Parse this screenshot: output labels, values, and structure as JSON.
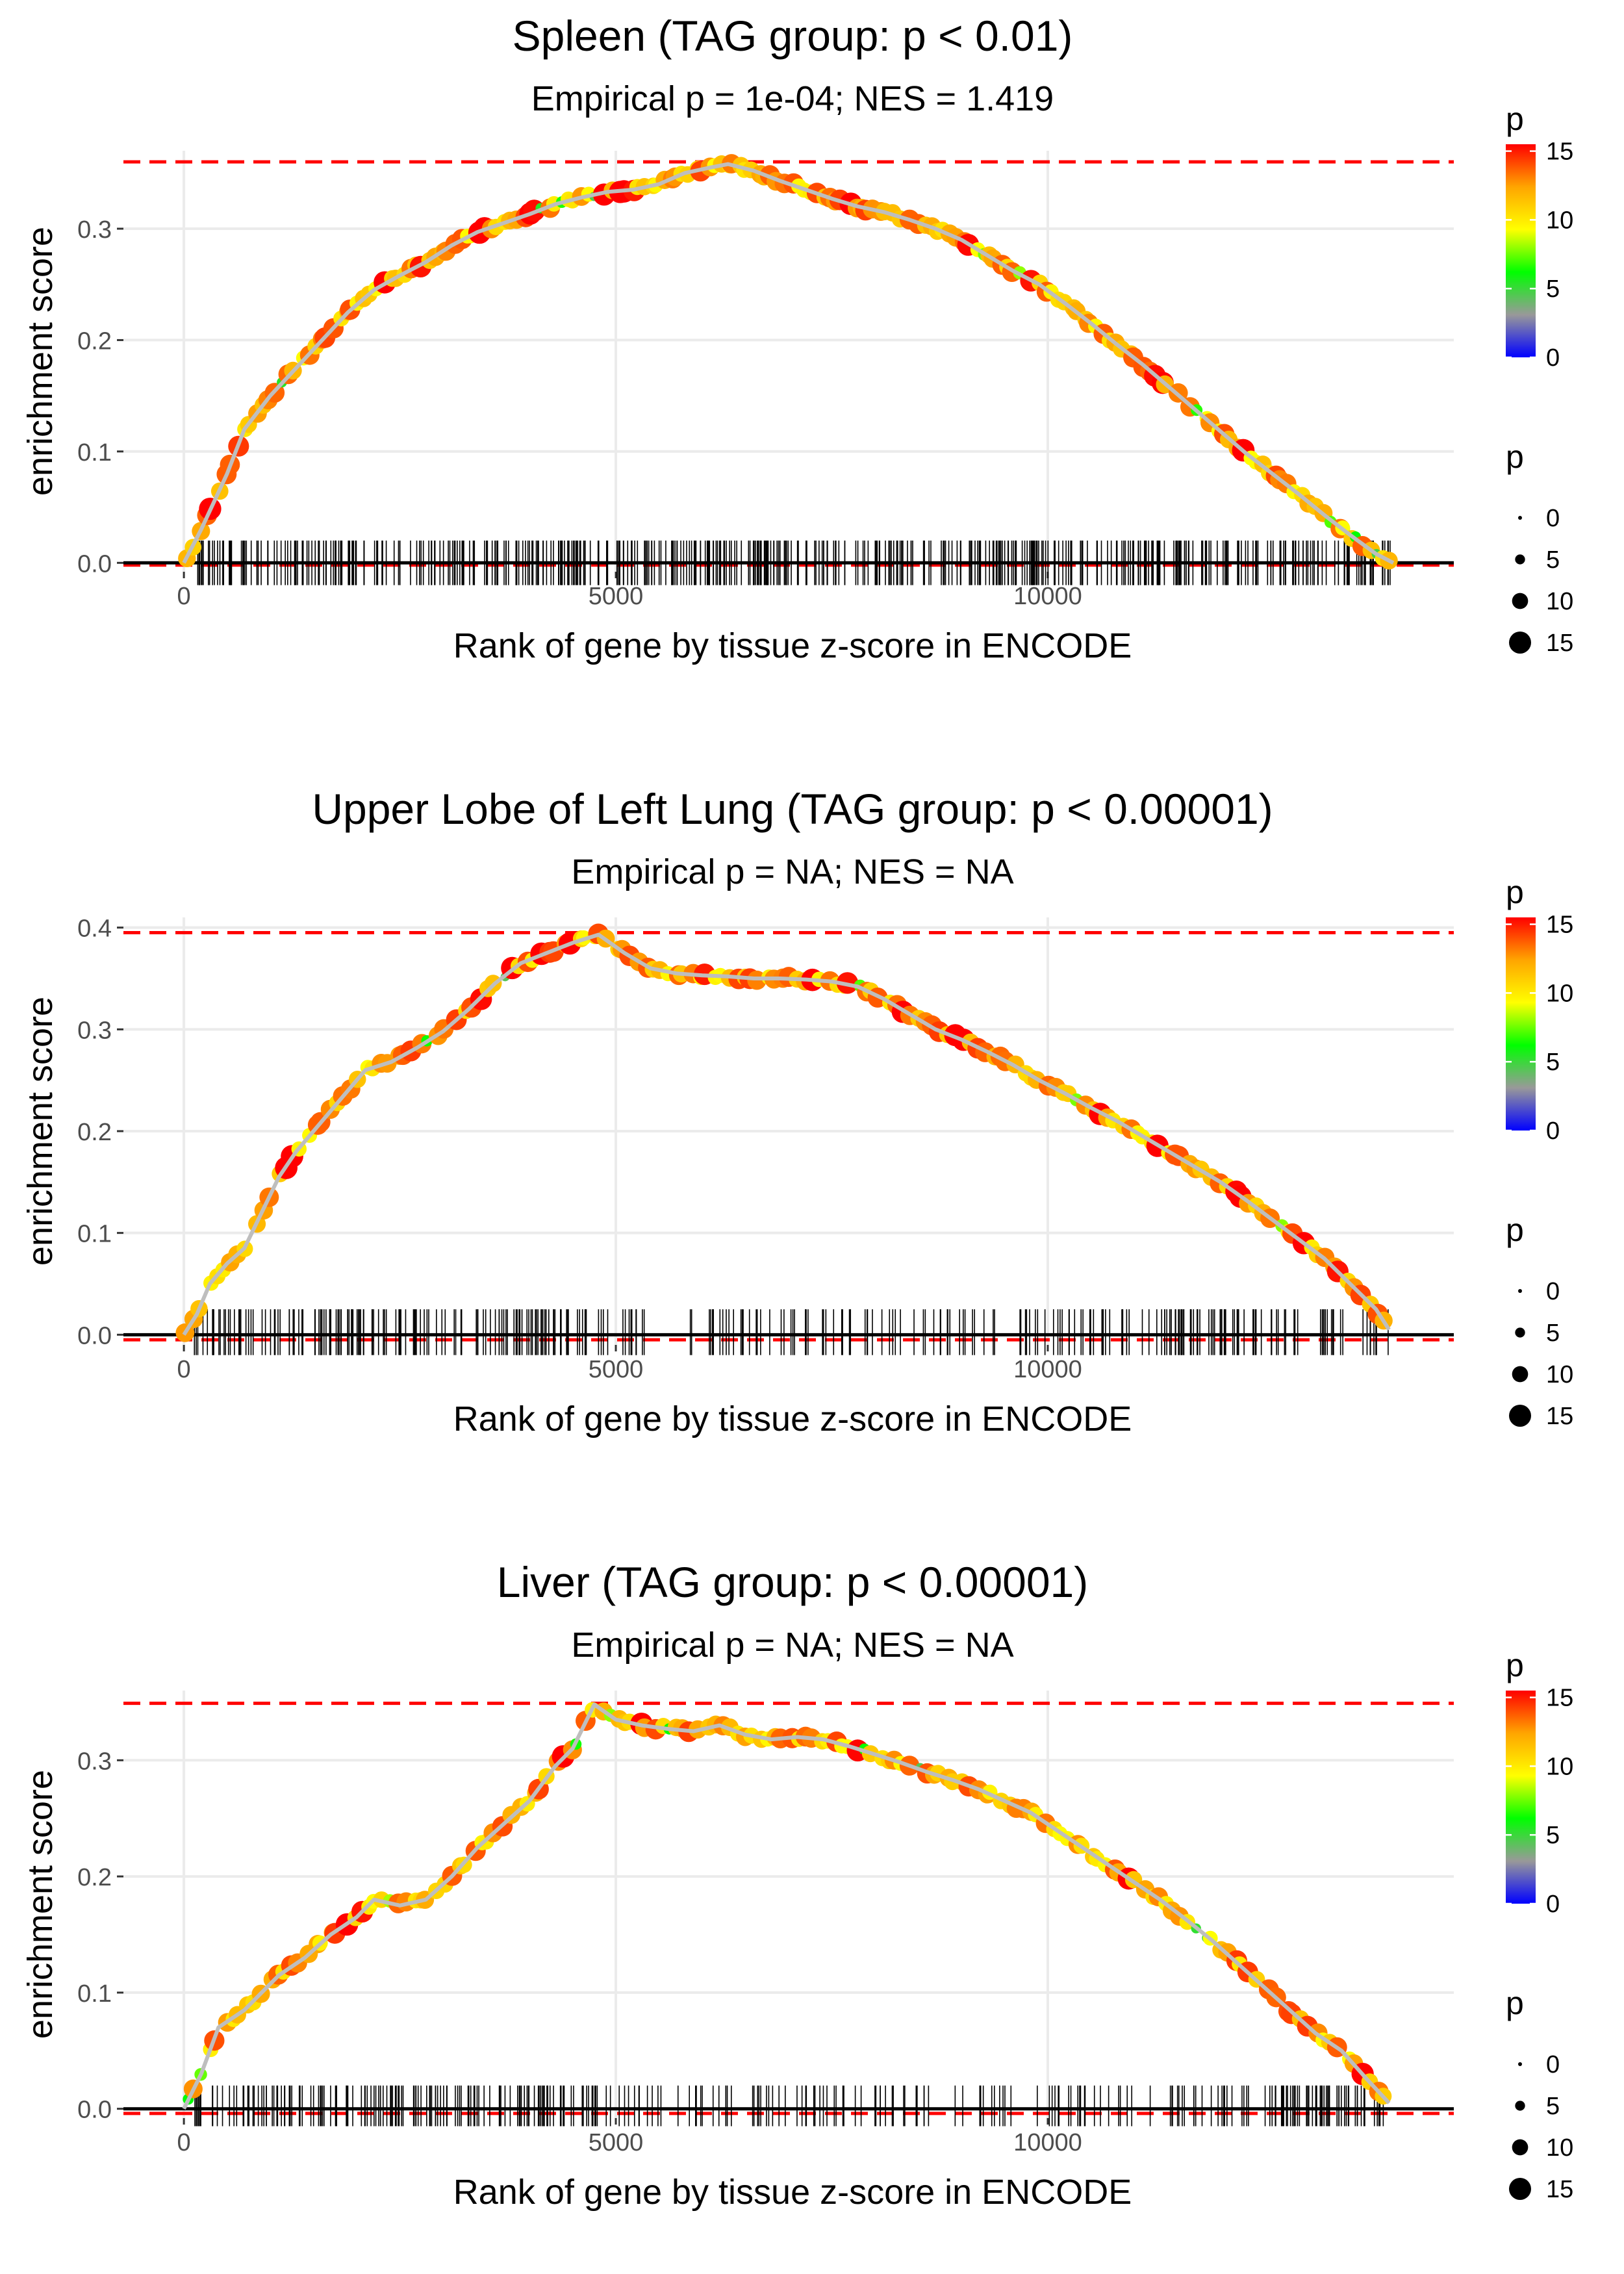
{
  "colors": {
    "grid": "#ebebeb",
    "threshold": "#ff0000",
    "baseline": "#000000",
    "curve": "#bebebe",
    "rug": "#000000",
    "gradient": [
      "#0000ff",
      "#999999",
      "#00ff00",
      "#ffff00",
      "#ffa500",
      "#ff0000"
    ]
  },
  "chart_data": [
    {
      "type": "line",
      "title": "Spleen (TAG group: p < 0.01)",
      "subtitle": "Empirical p = 1e-04; NES = 1.419",
      "xlabel": "Rank of gene by tissue z-score in ENCODE",
      "ylabel": "enrichment score",
      "xlim": [
        -700,
        14700
      ],
      "ylim": [
        -0.008,
        0.37
      ],
      "xticks": [
        0,
        5000,
        10000
      ],
      "xtick_labels": [
        "0",
        "5000",
        "10000"
      ],
      "yticks": [
        0.0,
        0.1,
        0.2,
        0.3
      ],
      "ytick_labels": [
        "0.0",
        "0.1",
        "0.2",
        "0.3"
      ],
      "max_es": 0.36,
      "min_es": -0.002,
      "n_hits": 520,
      "rug": {
        "x_start": 100,
        "x_end": 14000,
        "y_low": -0.02,
        "y_high": 0.02,
        "dense": [
          [
            100,
            14000
          ]
        ]
      },
      "curve": {
        "x": [
          0,
          200,
          500,
          700,
          1000,
          1300,
          1600,
          1900,
          2200,
          2500,
          2800,
          3100,
          3400,
          3700,
          4000,
          4300,
          4600,
          4900,
          5200,
          5500,
          5800,
          6100,
          6300,
          6600,
          6900,
          7200,
          7500,
          7800,
          8100,
          8400,
          8700,
          9000,
          9300,
          9600,
          9900,
          10200,
          10500,
          10800,
          11100,
          11400,
          11700,
          12000,
          12300,
          12600,
          12900,
          13200,
          13500,
          13800,
          14000
        ],
        "y": [
          0.0,
          0.03,
          0.08,
          0.12,
          0.15,
          0.175,
          0.2,
          0.225,
          0.245,
          0.258,
          0.27,
          0.285,
          0.297,
          0.305,
          0.313,
          0.322,
          0.328,
          0.333,
          0.335,
          0.34,
          0.35,
          0.355,
          0.358,
          0.352,
          0.343,
          0.335,
          0.327,
          0.32,
          0.315,
          0.308,
          0.3,
          0.29,
          0.276,
          0.262,
          0.25,
          0.233,
          0.215,
          0.196,
          0.178,
          0.158,
          0.138,
          0.118,
          0.098,
          0.08,
          0.062,
          0.043,
          0.025,
          0.008,
          0.0
        ]
      },
      "points": {
        "n": 190,
        "p_range": [
          0,
          15
        ]
      },
      "legend": {
        "color": {
          "title": "p",
          "ticks": [
            0,
            5,
            10,
            15
          ],
          "limits": [
            0,
            15.5
          ]
        },
        "size": {
          "title": "p",
          "values": [
            0,
            5,
            10,
            15
          ]
        }
      }
    },
    {
      "type": "line",
      "title": "Upper Lobe of Left Lung (TAG group: p < 0.00001)",
      "subtitle": "Empirical p = NA; NES = NA",
      "xlabel": "Rank of gene by tissue z-score in ENCODE",
      "ylabel": "enrichment score",
      "xlim": [
        -700,
        14700
      ],
      "ylim": [
        -0.01,
        0.41
      ],
      "xticks": [
        0,
        5000,
        10000
      ],
      "xtick_labels": [
        "0",
        "5000",
        "10000"
      ],
      "yticks": [
        0.0,
        0.1,
        0.2,
        0.3,
        0.4
      ],
      "ytick_labels": [
        "0.0",
        "0.1",
        "0.2",
        "0.3",
        "0.4"
      ],
      "max_es": 0.395,
      "min_es": -0.005,
      "n_hits": 330,
      "rug": {
        "x_start": 100,
        "x_end": 13950,
        "y_low": -0.02,
        "y_high": 0.025,
        "dense": [
          [
            100,
            4800
          ],
          [
            11200,
            12900
          ]
        ]
      },
      "curve": {
        "x": [
          0,
          150,
          300,
          500,
          700,
          900,
          1100,
          1300,
          1500,
          1700,
          1900,
          2100,
          2400,
          2700,
          3000,
          3300,
          3600,
          3900,
          4200,
          4500,
          4800,
          5100,
          5400,
          5700,
          6000,
          6300,
          6600,
          6900,
          7200,
          7500,
          7800,
          8100,
          8400,
          8700,
          9000,
          9300,
          9600,
          9900,
          10200,
          10500,
          10800,
          11100,
          11400,
          11700,
          12000,
          12300,
          12600,
          12900,
          13200,
          13500,
          13800,
          13950
        ],
        "y": [
          0.0,
          0.02,
          0.05,
          0.07,
          0.085,
          0.12,
          0.155,
          0.18,
          0.2,
          0.22,
          0.24,
          0.26,
          0.268,
          0.282,
          0.298,
          0.32,
          0.345,
          0.365,
          0.375,
          0.385,
          0.393,
          0.375,
          0.36,
          0.355,
          0.353,
          0.352,
          0.35,
          0.35,
          0.349,
          0.347,
          0.342,
          0.33,
          0.315,
          0.3,
          0.29,
          0.278,
          0.265,
          0.25,
          0.237,
          0.223,
          0.21,
          0.195,
          0.18,
          0.165,
          0.15,
          0.132,
          0.113,
          0.094,
          0.075,
          0.05,
          0.025,
          0.005
        ]
      },
      "points": {
        "n": 160,
        "p_range": [
          0,
          15
        ]
      },
      "legend": {
        "color": {
          "title": "p",
          "ticks": [
            0,
            5,
            10,
            15
          ],
          "limits": [
            0,
            15.5
          ]
        },
        "size": {
          "title": "p",
          "values": [
            0,
            5,
            10,
            15
          ]
        }
      }
    },
    {
      "type": "line",
      "title": "Liver (TAG group: p < 0.00001)",
      "subtitle": "Empirical p = NA; NES = NA",
      "xlabel": "Rank of gene by tissue z-score in ENCODE",
      "ylabel": "enrichment score",
      "xlim": [
        -700,
        14700
      ],
      "ylim": [
        -0.008,
        0.36
      ],
      "xticks": [
        0,
        5000,
        10000
      ],
      "xtick_labels": [
        "0",
        "5000",
        "10000"
      ],
      "yticks": [
        0.0,
        0.1,
        0.2,
        0.3
      ],
      "ytick_labels": [
        "0.0",
        "0.1",
        "0.2",
        "0.3"
      ],
      "max_es": 0.349,
      "min_es": -0.004,
      "n_hits": 320,
      "rug": {
        "x_start": 100,
        "x_end": 13950,
        "y_low": -0.015,
        "y_high": 0.02,
        "dense": [
          [
            100,
            4800
          ],
          [
            12600,
            13950
          ]
        ]
      },
      "curve": {
        "x": [
          0,
          200,
          400,
          700,
          900,
          1100,
          1400,
          1700,
          2000,
          2200,
          2500,
          2800,
          3100,
          3400,
          3700,
          4000,
          4300,
          4500,
          4750,
          5000,
          5300,
          5600,
          5900,
          6200,
          6500,
          6800,
          7100,
          7400,
          7700,
          8000,
          8300,
          8600,
          8900,
          9200,
          9500,
          9800,
          10100,
          10400,
          10700,
          11000,
          11300,
          11600,
          11900,
          12200,
          12500,
          12800,
          13100,
          13400,
          13700,
          13950
        ],
        "y": [
          0.0,
          0.03,
          0.07,
          0.085,
          0.1,
          0.115,
          0.13,
          0.15,
          0.165,
          0.18,
          0.175,
          0.18,
          0.2,
          0.225,
          0.245,
          0.265,
          0.295,
          0.31,
          0.348,
          0.335,
          0.33,
          0.327,
          0.325,
          0.33,
          0.322,
          0.318,
          0.32,
          0.318,
          0.312,
          0.305,
          0.298,
          0.29,
          0.283,
          0.275,
          0.265,
          0.255,
          0.24,
          0.225,
          0.21,
          0.195,
          0.18,
          0.163,
          0.145,
          0.125,
          0.105,
          0.085,
          0.065,
          0.05,
          0.025,
          0.005
        ]
      },
      "points": {
        "n": 160,
        "p_range": [
          0,
          15
        ]
      },
      "legend": {
        "color": {
          "title": "p",
          "ticks": [
            0,
            5,
            10,
            15
          ],
          "limits": [
            0,
            15.5
          ]
        },
        "size": {
          "title": "p",
          "values": [
            0,
            5,
            10,
            15
          ]
        }
      }
    }
  ]
}
